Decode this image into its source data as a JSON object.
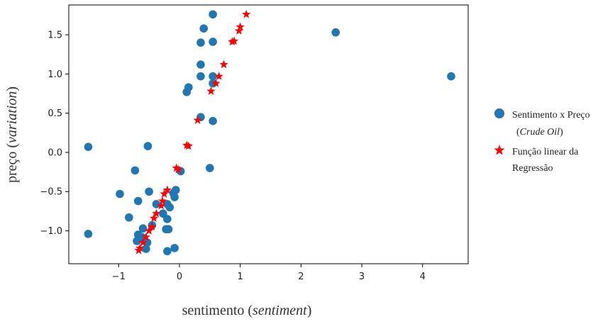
{
  "chart_data": {
    "type": "scatter",
    "xlabel_main": "sentimento",
    "xlabel_italic": "sentiment",
    "ylabel_main": "preço",
    "ylabel_italic": "variation",
    "xlim": [
      -1.82,
      4.75
    ],
    "ylim": [
      -1.42,
      1.88
    ],
    "xticks": [
      -1,
      0,
      1,
      2,
      3,
      4
    ],
    "xtick_labels": [
      "−1",
      "0",
      "1",
      "2",
      "3",
      "4"
    ],
    "yticks": [
      -1.0,
      -0.5,
      0.0,
      0.5,
      1.0,
      1.5
    ],
    "ytick_labels": [
      "−1.0",
      "−0.5",
      "0.0",
      "0.5",
      "1.0",
      "1.5"
    ],
    "grid": false,
    "legend_position": "right",
    "series": [
      {
        "name": "Sentimento x Preço",
        "name_suffix": "Crude Oil",
        "marker": "circle",
        "color": "#1f77b4",
        "points": [
          [
            0.55,
            1.76
          ],
          [
            0.4,
            1.58
          ],
          [
            0.55,
            1.41
          ],
          [
            0.35,
            1.4
          ],
          [
            0.35,
            1.12
          ],
          [
            0.35,
            0.97
          ],
          [
            0.55,
            0.97
          ],
          [
            0.55,
            0.88
          ],
          [
            0.15,
            0.83
          ],
          [
            0.12,
            0.77
          ],
          [
            0.35,
            0.45
          ],
          [
            0.55,
            0.4
          ],
          [
            2.57,
            1.53
          ],
          [
            4.47,
            0.97
          ],
          [
            -1.5,
            0.07
          ],
          [
            -0.52,
            0.08
          ],
          [
            -0.73,
            -0.23
          ],
          [
            0.5,
            -0.2
          ],
          [
            0.02,
            -0.24
          ],
          [
            -0.5,
            -0.5
          ],
          [
            -0.98,
            -0.53
          ],
          [
            -0.1,
            -0.52
          ],
          [
            -0.06,
            -0.48
          ],
          [
            -0.08,
            -0.57
          ],
          [
            -0.68,
            -0.62
          ],
          [
            -0.38,
            -0.66
          ],
          [
            -0.2,
            -0.66
          ],
          [
            -0.16,
            -0.7
          ],
          [
            -0.27,
            -0.78
          ],
          [
            -0.83,
            -0.83
          ],
          [
            -0.2,
            -0.85
          ],
          [
            -0.45,
            -0.93
          ],
          [
            -0.6,
            -0.97
          ],
          [
            -0.22,
            -0.98
          ],
          [
            -0.18,
            -0.98
          ],
          [
            -1.5,
            -1.04
          ],
          [
            -0.68,
            -1.05
          ],
          [
            -0.62,
            -1.08
          ],
          [
            -0.7,
            -1.13
          ],
          [
            -0.53,
            -1.15
          ],
          [
            -0.55,
            -1.23
          ],
          [
            -0.08,
            -1.22
          ],
          [
            -0.2,
            -1.26
          ]
        ]
      },
      {
        "name": "Função linear da Regressão",
        "marker": "star",
        "color": "#ff0000",
        "points": [
          [
            1.1,
            1.76
          ],
          [
            1.0,
            1.6
          ],
          [
            0.98,
            1.55
          ],
          [
            0.9,
            1.42
          ],
          [
            0.87,
            1.41
          ],
          [
            0.73,
            1.12
          ],
          [
            0.65,
            0.97
          ],
          [
            0.6,
            0.88
          ],
          [
            0.52,
            0.78
          ],
          [
            0.3,
            0.41
          ],
          [
            0.12,
            0.09
          ],
          [
            0.15,
            0.08
          ],
          [
            -0.05,
            -0.2
          ],
          [
            -0.02,
            -0.22
          ],
          [
            -0.2,
            -0.48
          ],
          [
            -0.25,
            -0.53
          ],
          [
            -0.28,
            -0.62
          ],
          [
            -0.3,
            -0.68
          ],
          [
            -0.38,
            -0.78
          ],
          [
            -0.42,
            -0.84
          ],
          [
            -0.45,
            -0.95
          ],
          [
            -0.5,
            -1.0
          ],
          [
            -0.55,
            -1.08
          ],
          [
            -0.6,
            -1.15
          ],
          [
            -0.65,
            -1.22
          ],
          [
            -0.67,
            -1.25
          ]
        ]
      }
    ]
  }
}
